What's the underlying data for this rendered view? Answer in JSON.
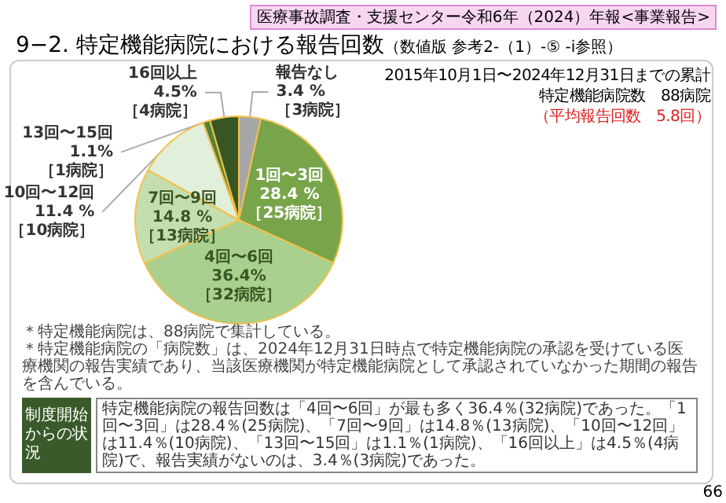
{
  "chart_data": {
    "type": "pie",
    "title": "9−2. 特定機能病院における報告回数",
    "subtitle": "（数値版 参考2-（1）-⑤ -ⅰ参照）",
    "categories": [
      "報告なし",
      "1回〜3回",
      "4回〜6回",
      "7回〜9回",
      "10回〜12回",
      "13回〜15回",
      "16回以上"
    ],
    "values": [
      3.4,
      28.4,
      36.4,
      14.8,
      11.4,
      1.1,
      4.5
    ],
    "value_labels": [
      "3.4 %\n［3病院］",
      "28.4 %\n［25病院］",
      "36.4%\n［32病院］",
      "14.8 %\n［13病院］",
      "11.4 %\n［10病院］",
      "1.1%\n［1病院］",
      "4.5%\n［4病院］"
    ],
    "colors": [
      "#a6a6a6",
      "#78a54a",
      "#a9d08e",
      "#c5deb0",
      "#e2efda",
      "#548235",
      "#375623"
    ],
    "legend": false,
    "annotations": [
      "医療事故調査・支援センター令和6年（2024）年報<事業報告>",
      "2015年10月1日〜2024年12月31日までの累計",
      "特定機能病院数　88病院",
      "（平均報告回数　5.8回）",
      "＊特定機能病院は、88病院で集計している。",
      "＊特定機能病院の「病院数」は、2024年12月31日時点で特定機能病院の承認を受けている医療機関の報告実績であり、当該医療機関が特定機能病院として承認されていなかった期間の報告を含んでいる。",
      "制度開始からの状況",
      "特定機能病院の報告回数は「4回〜6回」が最も多く36.4％(32病院)であった。「1回〜3回」は28.4％(25病院)、「7回〜9回」は14.8％(13病院)、「10回〜12回」は11.4％(10病院)、「13回〜15回」は1.1％(1病院)、「16回以上」は4.5％(4病院)で、報告実績がないのは、3.4％(3病院)であった。",
      "66"
    ]
  }
}
